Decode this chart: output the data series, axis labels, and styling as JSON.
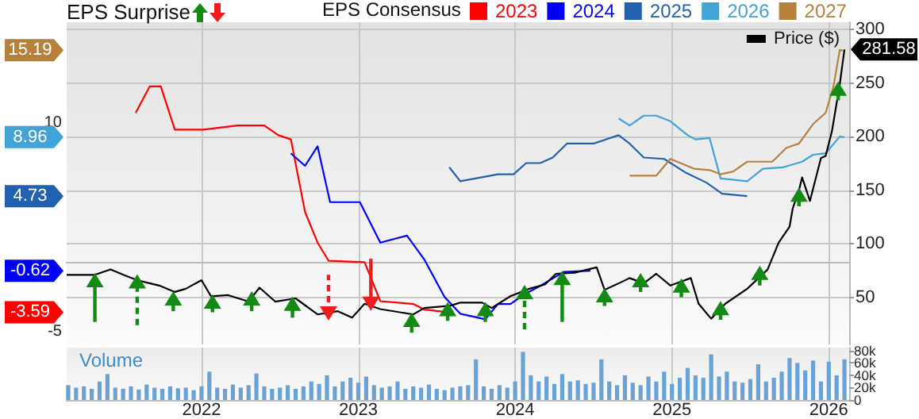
{
  "chart_data": [
    {
      "type": "line",
      "title": "EPS Surprise",
      "legend_title": "EPS Consensus",
      "xlim": [
        2021.14,
        2026.13
      ],
      "xticks": [
        2022,
        2023,
        2024,
        2025,
        2026
      ],
      "ylim": [
        6,
        307
      ],
      "yticks": [
        50,
        100,
        150,
        200,
        250,
        300
      ],
      "y2lim": [
        -5.9,
        17.2
      ],
      "y2ticks": [
        -5,
        10
      ],
      "grid": true,
      "annotations": [
        "15.19",
        "8.96",
        "4.73",
        "-0.62",
        "-3.59"
      ],
      "legend": "top",
      "tick_labels": "y",
      "series": [
        {
          "name": "2023",
          "color": "#ff0000",
          "axis": "y2",
          "x": [
            2021.58,
            2021.67,
            2021.74,
            2021.83,
            2022.01,
            2022.23,
            2022.4,
            2022.49,
            2022.57,
            2022.66,
            2022.74,
            2022.81,
            2023.04,
            2023.14,
            2023.35,
            2023.42,
            2023.57
          ],
          "values": [
            10.7,
            12.6,
            12.6,
            9.5,
            9.5,
            9.8,
            9.8,
            9.1,
            8.8,
            3.6,
            1.4,
            0.1,
            0.0,
            -2.8,
            -3.0,
            -3.4,
            -3.59
          ]
        },
        {
          "name": "2024",
          "color": "#0000ff",
          "axis": "y2",
          "x": [
            2022.57,
            2022.66,
            2022.74,
            2022.82,
            2023.01,
            2023.14,
            2023.31,
            2023.42,
            2023.55,
            2023.65,
            2023.81,
            2023.89,
            2023.97,
            2024.06,
            2024.16,
            2024.31,
            2024.48
          ],
          "values": [
            7.8,
            6.9,
            8.3,
            4.3,
            4.3,
            1.4,
            1.9,
            0.2,
            -2.5,
            -3.7,
            -4.1,
            -3.0,
            -3.0,
            -2.3,
            -1.7,
            -0.7,
            -0.62
          ]
        },
        {
          "name": "2025",
          "color": "#2260b0",
          "axis": "y2",
          "x": [
            2023.58,
            2023.65,
            2023.89,
            2023.99,
            2024.07,
            2024.16,
            2024.24,
            2024.33,
            2024.5,
            2024.66,
            2024.73,
            2024.82,
            2024.95,
            2025.09,
            2025.22,
            2025.32,
            2025.48
          ],
          "values": [
            6.8,
            5.8,
            6.3,
            6.3,
            7.1,
            7.1,
            7.5,
            8.5,
            8.5,
            9.1,
            8.5,
            7.5,
            7.4,
            6.4,
            5.7,
            4.9,
            4.73
          ]
        },
        {
          "name": "2026",
          "color": "#42a3d6",
          "axis": "y2",
          "x": [
            2024.66,
            2024.73,
            2024.82,
            2024.9,
            2024.99,
            2025.1,
            2025.15,
            2025.24,
            2025.31,
            2025.48,
            2025.58,
            2025.71,
            2025.83,
            2025.9,
            2025.98,
            2026.07,
            2026.1
          ],
          "values": [
            10.3,
            9.8,
            10.5,
            10.5,
            10.1,
            9.1,
            8.8,
            8.9,
            6.0,
            5.8,
            6.7,
            6.8,
            7.2,
            7.7,
            7.8,
            9.0,
            8.96
          ]
        },
        {
          "name": "2027",
          "color": "#b5813c",
          "axis": "y2",
          "x": [
            2024.73,
            2024.9,
            2024.99,
            2025.14,
            2025.24,
            2025.31,
            2025.39,
            2025.48,
            2025.64,
            2025.73,
            2025.81,
            2025.9,
            2025.98,
            2026.03,
            2026.07,
            2026.09
          ],
          "values": [
            6.2,
            6.2,
            7.4,
            6.7,
            6.6,
            6.3,
            6.5,
            7.2,
            7.2,
            8.2,
            8.5,
            9.9,
            10.7,
            12.6,
            15.2,
            15.19
          ]
        },
        {
          "name": "Price ($)",
          "color": "#000000",
          "x": [
            2021.14,
            2021.32,
            2021.42,
            2021.52,
            2021.59,
            2021.73,
            2021.83,
            2021.9,
            2022.0,
            2022.06,
            2022.17,
            2022.3,
            2022.37,
            2022.47,
            2022.6,
            2022.74,
            2022.87,
            2022.96,
            2023.04,
            2023.14,
            2023.35,
            2023.42,
            2023.58,
            2023.65,
            2023.79,
            2023.85,
            2023.97,
            2024.09,
            2024.19,
            2024.26,
            2024.38,
            2024.52,
            2024.57,
            2024.66,
            2024.73,
            2024.82,
            2024.9,
            2024.99,
            2025.12,
            2025.17,
            2025.25,
            2025.34,
            2025.48,
            2025.61,
            2025.68,
            2025.75,
            2025.77,
            2025.81,
            2025.83,
            2025.88,
            2025.95,
            2025.98,
            2026.02,
            2026.07,
            2026.1
          ],
          "values": [
            71,
            71,
            76,
            70,
            66,
            61,
            55,
            58,
            66,
            51,
            52,
            46,
            59,
            46,
            49,
            34,
            37,
            31,
            44,
            39,
            34,
            40,
            42,
            45,
            45,
            40,
            51,
            58,
            62,
            72,
            73,
            78,
            57,
            63,
            68,
            63,
            72,
            61,
            68,
            44,
            30,
            44,
            58,
            76,
            101,
            116,
            133,
            150,
            162,
            140,
            180,
            182,
            205,
            249,
            281.58
          ],
          "value_labels": [
            null,
            null,
            null,
            null,
            null,
            null,
            null,
            null,
            null,
            null,
            null,
            null,
            null,
            null,
            null,
            null,
            null,
            null,
            null,
            null,
            null,
            null,
            null,
            null,
            null,
            null,
            null,
            null,
            null,
            null,
            null,
            null,
            null,
            null,
            null,
            null,
            null,
            null,
            null,
            null,
            null,
            null,
            null,
            null,
            null,
            null,
            null,
            null,
            null,
            null,
            null,
            null,
            null,
            null,
            "281.58"
          ]
        },
        {
          "type": "scatter",
          "marker": "triangle",
          "color": "#138a13",
          "line_style": "solid",
          "x": [
            2021.32,
            2021.82,
            2022.07,
            2022.32,
            2022.58,
            2023.34,
            2023.57,
            2023.81,
            2024.3,
            2024.57,
            2024.8,
            2025.06,
            2025.31,
            2025.56,
            2025.81,
            2026.06
          ],
          "values": [
            66,
            49,
            46,
            49,
            44,
            29,
            39,
            39,
            68,
            52,
            66,
            61,
            40,
            73,
            146,
            245
          ],
          "errors": [
            [
              27,
              66
            ],
            [
              37,
              49
            ],
            [
              36,
              46
            ],
            [
              37,
              49
            ],
            [
              31,
              44
            ],
            [
              17,
              29
            ],
            [
              28,
              39
            ],
            [
              27,
              39
            ],
            [
              27,
              68
            ],
            [
              42,
              52
            ],
            [
              55,
              66
            ],
            [
              50,
              61
            ],
            [
              29,
              40
            ],
            [
              61,
              73
            ],
            [
              135,
              146
            ],
            [
              234,
              245
            ]
          ]
        },
        {
          "type": "scatter",
          "marker": "triangle",
          "color": "#138a13",
          "line_style": "dashed",
          "x": [
            2021.59,
            2024.06
          ],
          "values": [
            65,
            55
          ],
          "errors": [
            [
              24,
              65
            ],
            [
              20,
              55
            ]
          ]
        },
        {
          "type": "scatter",
          "marker": "triangle",
          "color": "#ee1c1c",
          "line_style": "dashed",
          "x": [
            2022.81
          ],
          "values": [
            35
          ],
          "errors": [
            [
              35,
              71
            ]
          ]
        },
        {
          "type": "scatter",
          "marker": "triangle",
          "color": "#ee1c1c",
          "line_style": "solid",
          "x": [
            2023.08
          ],
          "values": [
            44
          ],
          "errors": [
            [
              44,
              86
            ]
          ]
        }
      ]
    },
    {
      "type": "bar",
      "title": "Volume",
      "color": "#6aa2d6",
      "xlim": [
        2021.14,
        2026.13
      ],
      "xticks": [
        2022,
        2023,
        2024,
        2025,
        2026
      ],
      "ylim": [
        0,
        85000
      ],
      "yticks": [
        0,
        {
          "value": 20000,
          "label": "20k"
        },
        {
          "value": 40000,
          "label": "40k"
        },
        {
          "value": 60000,
          "label": "60k"
        },
        {
          "value": 80000,
          "label": "80k"
        }
      ],
      "grid": "x",
      "x": [
        2021.15,
        2021.2,
        2021.25,
        2021.3,
        2021.35,
        2021.4,
        2021.45,
        2021.5,
        2021.55,
        2021.6,
        2021.65,
        2021.7,
        2021.75,
        2021.8,
        2021.85,
        2021.9,
        2021.95,
        2022.0,
        2022.05,
        2022.1,
        2022.15,
        2022.2,
        2022.25,
        2022.3,
        2022.35,
        2022.4,
        2022.45,
        2022.5,
        2022.55,
        2022.6,
        2022.65,
        2022.7,
        2022.75,
        2022.8,
        2022.85,
        2022.9,
        2022.95,
        2023.0,
        2023.05,
        2023.1,
        2023.15,
        2023.2,
        2023.25,
        2023.3,
        2023.35,
        2023.4,
        2023.45,
        2023.5,
        2023.55,
        2023.6,
        2023.65,
        2023.7,
        2023.75,
        2023.8,
        2023.85,
        2023.9,
        2023.95,
        2024.0,
        2024.05,
        2024.1,
        2024.15,
        2024.2,
        2024.25,
        2024.3,
        2024.35,
        2024.4,
        2024.45,
        2024.5,
        2024.55,
        2024.6,
        2024.65,
        2024.7,
        2024.75,
        2024.8,
        2024.85,
        2024.9,
        2024.95,
        2025.0,
        2025.05,
        2025.1,
        2025.15,
        2025.2,
        2025.25,
        2025.3,
        2025.35,
        2025.4,
        2025.45,
        2025.5,
        2025.55,
        2025.6,
        2025.65,
        2025.7,
        2025.75,
        2025.8,
        2025.85,
        2025.9,
        2025.95,
        2026.0,
        2026.05,
        2026.1
      ],
      "values": [
        24000,
        20000,
        22000,
        18000,
        30000,
        42000,
        20000,
        18000,
        22000,
        17000,
        25000,
        20000,
        18000,
        22000,
        19000,
        20000,
        16000,
        22000,
        46000,
        20000,
        18000,
        25000,
        20000,
        24000,
        43000,
        22000,
        18000,
        20000,
        24000,
        18000,
        22000,
        30000,
        26000,
        40000,
        22000,
        30000,
        36000,
        28000,
        38000,
        24000,
        20000,
        22000,
        30000,
        18000,
        22000,
        20000,
        25000,
        18000,
        16000,
        20000,
        22000,
        24000,
        66000,
        22000,
        18000,
        24000,
        20000,
        30000,
        78000,
        40000,
        30000,
        38000,
        26000,
        42000,
        30000,
        32000,
        26000,
        28000,
        66000,
        30000,
        24000,
        40000,
        28000,
        24000,
        38000,
        30000,
        46000,
        26000,
        36000,
        52000,
        40000,
        36000,
        74000,
        38000,
        46000,
        30000,
        28000,
        34000,
        58000,
        30000,
        36000,
        46000,
        68000,
        60000,
        48000,
        64000,
        30000,
        62000,
        40000,
        66000
      ]
    }
  ]
}
